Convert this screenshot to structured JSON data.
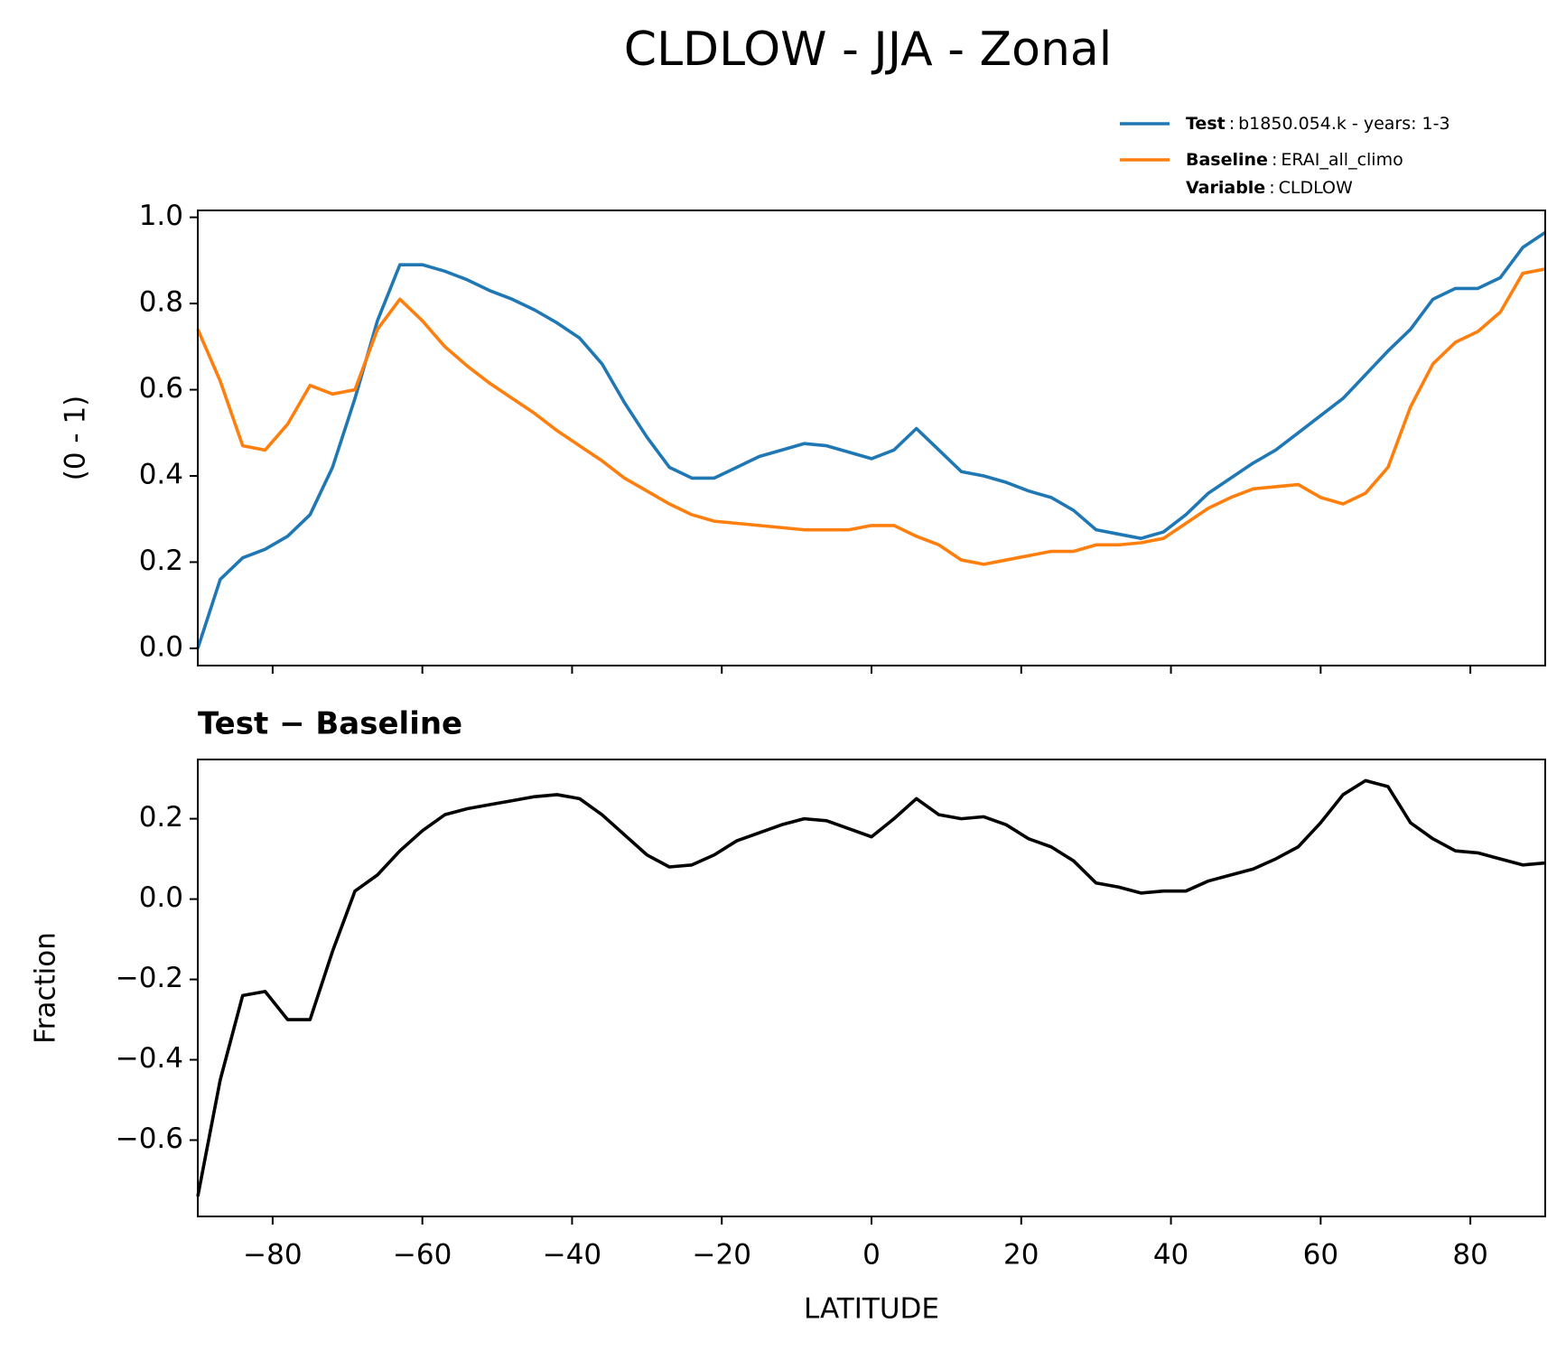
{
  "title": "CLDLOW - JJA - Zonal",
  "legend_separator": ":",
  "chart_data": [
    {
      "type": "line",
      "ylabel": "(0 - 1)",
      "x": [
        -90,
        -87,
        -84,
        -81,
        -78,
        -75,
        -72,
        -69,
        -66,
        -63,
        -60,
        -57,
        -54,
        -51,
        -48,
        -45,
        -42,
        -39,
        -36,
        -33,
        -30,
        -27,
        -24,
        -21,
        -18,
        -15,
        -12,
        -9,
        -6,
        -3,
        0,
        3,
        6,
        9,
        12,
        15,
        18,
        21,
        24,
        27,
        30,
        33,
        36,
        39,
        42,
        45,
        48,
        51,
        54,
        57,
        60,
        63,
        66,
        69,
        72,
        75,
        78,
        81,
        84,
        87,
        90
      ],
      "series": [
        {
          "name": "Test",
          "description": "b1850.054.k - years: 1-3",
          "color": "#1f77b4",
          "values": [
            0.0,
            0.16,
            0.21,
            0.23,
            0.26,
            0.31,
            0.42,
            0.58,
            0.76,
            0.89,
            0.89,
            0.875,
            0.855,
            0.83,
            0.81,
            0.785,
            0.755,
            0.72,
            0.66,
            0.57,
            0.49,
            0.42,
            0.395,
            0.395,
            0.42,
            0.445,
            0.46,
            0.475,
            0.47,
            0.455,
            0.44,
            0.46,
            0.51,
            0.46,
            0.41,
            0.4,
            0.385,
            0.365,
            0.35,
            0.32,
            0.275,
            0.265,
            0.255,
            0.27,
            0.31,
            0.36,
            0.395,
            0.43,
            0.46,
            0.5,
            0.54,
            0.58,
            0.635,
            0.69,
            0.74,
            0.81,
            0.835,
            0.835,
            0.86,
            0.93,
            0.965
          ]
        },
        {
          "name": "Baseline",
          "description": "ERAI_all_climo",
          "color": "#ff7f0e",
          "values": [
            0.74,
            0.62,
            0.47,
            0.46,
            0.52,
            0.61,
            0.59,
            0.6,
            0.74,
            0.81,
            0.76,
            0.7,
            0.655,
            0.615,
            0.58,
            0.545,
            0.505,
            0.47,
            0.435,
            0.395,
            0.365,
            0.335,
            0.31,
            0.295,
            0.29,
            0.285,
            0.28,
            0.275,
            0.275,
            0.275,
            0.285,
            0.285,
            0.26,
            0.24,
            0.205,
            0.195,
            0.205,
            0.215,
            0.225,
            0.225,
            0.24,
            0.24,
            0.245,
            0.255,
            0.29,
            0.325,
            0.35,
            0.37,
            0.375,
            0.38,
            0.35,
            0.335,
            0.36,
            0.42,
            0.56,
            0.66,
            0.71,
            0.735,
            0.78,
            0.87,
            0.88
          ]
        }
      ],
      "legend_note": {
        "name": "Variable",
        "description": "CLDLOW"
      },
      "legend": "upper right",
      "xlim": [
        -90,
        90
      ],
      "xticks": [
        {
          "value": -80,
          "label": "−80"
        },
        {
          "value": -60,
          "label": "−60"
        },
        {
          "value": -40,
          "label": "−40"
        },
        {
          "value": -20,
          "label": "−20"
        },
        0,
        20,
        40,
        60,
        80
      ],
      "show_xtick_labels": false,
      "ylim": [
        -0.04,
        1.016
      ],
      "yticks": [
        {
          "value": 0,
          "label": "0.0"
        },
        0.2,
        0.4,
        0.6,
        0.8,
        {
          "value": 1,
          "label": "1.0"
        }
      ]
    },
    {
      "type": "line",
      "title": "Test − Baseline",
      "ylabel": "Fraction",
      "xlabel": "LATITUDE",
      "x": [
        -90,
        -87,
        -84,
        -81,
        -78,
        -75,
        -72,
        -69,
        -66,
        -63,
        -60,
        -57,
        -54,
        -51,
        -48,
        -45,
        -42,
        -39,
        -36,
        -33,
        -30,
        -27,
        -24,
        -21,
        -18,
        -15,
        -12,
        -9,
        -6,
        -3,
        0,
        3,
        6,
        9,
        12,
        15,
        18,
        21,
        24,
        27,
        30,
        33,
        36,
        39,
        42,
        45,
        48,
        51,
        54,
        57,
        60,
        63,
        66,
        69,
        72,
        75,
        78,
        81,
        84,
        87,
        90
      ],
      "series": [
        {
          "color": "#000000",
          "values": [
            -0.74,
            -0.45,
            -0.24,
            -0.23,
            -0.3,
            -0.3,
            -0.13,
            0.02,
            0.06,
            0.12,
            0.17,
            0.21,
            0.225,
            0.235,
            0.245,
            0.255,
            0.26,
            0.25,
            0.21,
            0.16,
            0.11,
            0.08,
            0.085,
            0.11,
            0.145,
            0.165,
            0.185,
            0.2,
            0.195,
            0.175,
            0.155,
            0.2,
            0.25,
            0.21,
            0.2,
            0.205,
            0.185,
            0.15,
            0.13,
            0.095,
            0.04,
            0.03,
            0.015,
            0.02,
            0.02,
            0.045,
            0.06,
            0.075,
            0.1,
            0.13,
            0.19,
            0.26,
            0.295,
            0.28,
            0.19,
            0.15,
            0.12,
            0.115,
            0.1,
            0.085,
            0.09
          ]
        }
      ],
      "xlim": [
        -90,
        90
      ],
      "xticks": [
        {
          "value": -80,
          "label": "−80"
        },
        {
          "value": -60,
          "label": "−60"
        },
        {
          "value": -40,
          "label": "−40"
        },
        {
          "value": -20,
          "label": "−20"
        },
        0,
        20,
        40,
        60,
        80
      ],
      "show_xtick_labels": true,
      "ylim": [
        -0.79,
        0.3475
      ],
      "yticks": [
        {
          "value": -0.6,
          "label": "−0.6"
        },
        {
          "value": -0.4,
          "label": "−0.4"
        },
        {
          "value": -0.2,
          "label": "−0.2"
        },
        {
          "value": 0,
          "label": "0.0"
        },
        0.2
      ]
    }
  ]
}
